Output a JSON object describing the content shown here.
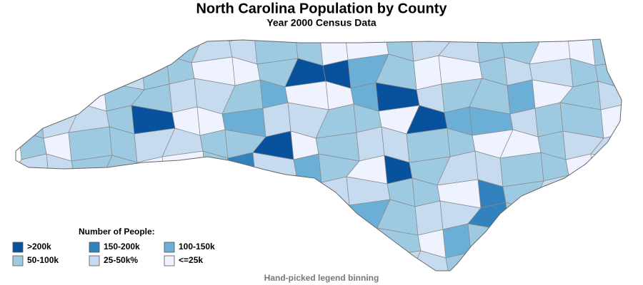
{
  "header": {
    "title": "North Carolina Population by County",
    "subtitle": "Year 2000 Census Data"
  },
  "legend": {
    "title": "Number of People:",
    "items": [
      {
        "label": ">200k",
        "color": "#08519c"
      },
      {
        "label": "150-200k",
        "color": "#3182bd"
      },
      {
        "label": "100-150k",
        "color": "#6baed6"
      },
      {
        "label": "50-100k",
        "color": "#9ecae1"
      },
      {
        "label": "25-50k%",
        "color": "#c6dbef"
      },
      {
        "label": "<=25k",
        "color": "#eff3ff"
      }
    ]
  },
  "footnote": "Hand-picked legend binning"
}
